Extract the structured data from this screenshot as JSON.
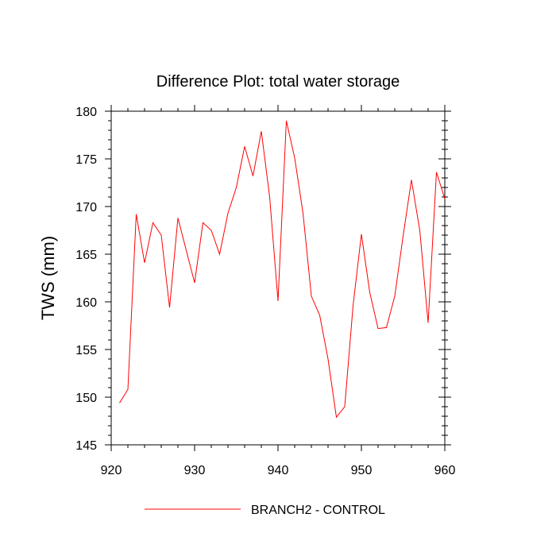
{
  "chart_data": {
    "type": "line",
    "title": "Difference Plot: total water storage",
    "xlabel": "",
    "ylabel": "TWS (mm)",
    "xlim": [
      920,
      960
    ],
    "ylim": [
      145,
      180
    ],
    "xticks": [
      920,
      930,
      940,
      950,
      960
    ],
    "yticks": [
      145,
      150,
      155,
      160,
      165,
      170,
      175,
      180
    ],
    "grid": false,
    "legend_position": "bottom",
    "series": [
      {
        "name": "BRANCH2 - CONTROL",
        "color": "#ff0000",
        "x": [
          921,
          922,
          923,
          924,
          925,
          926,
          927,
          928,
          929,
          930,
          931,
          932,
          933,
          934,
          935,
          936,
          937,
          938,
          939,
          940,
          941,
          942,
          943,
          944,
          945,
          946,
          947,
          948,
          949,
          950,
          951,
          952,
          953,
          954,
          955,
          956,
          957,
          958,
          959,
          960
        ],
        "values": [
          149.4,
          150.8,
          169.2,
          164.1,
          168.3,
          167.0,
          159.4,
          168.8,
          165.4,
          162.0,
          168.3,
          167.5,
          165.0,
          169.3,
          172.0,
          176.3,
          173.2,
          177.9,
          171.0,
          160.1,
          179.0,
          175.1,
          169.3,
          160.6,
          158.6,
          154.0,
          147.9,
          149.0,
          159.6,
          167.1,
          161.0,
          157.2,
          157.3,
          160.6,
          166.9,
          172.8,
          167.5,
          157.8,
          173.6,
          170.8
        ]
      }
    ]
  }
}
